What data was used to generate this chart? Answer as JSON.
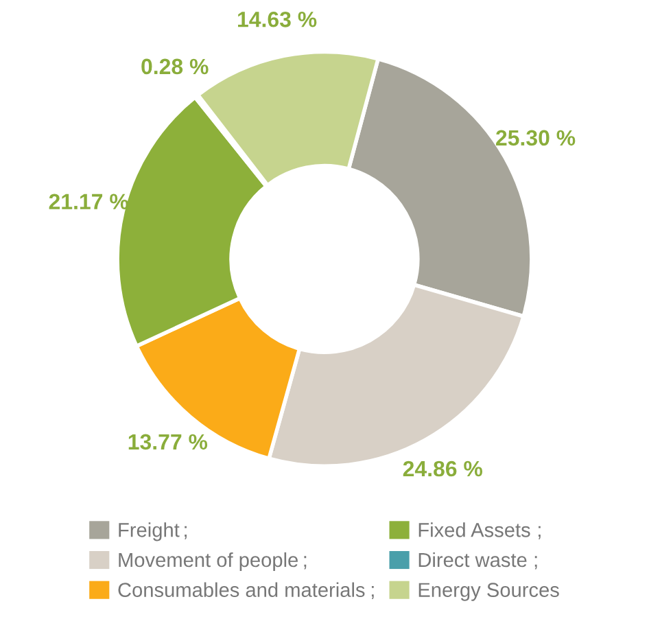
{
  "chart_data": {
    "type": "donut",
    "categories": [
      "Freight",
      "Movement of people",
      "Consumables and materials",
      "Fixed Assets",
      "Direct waste",
      "Energy Sources"
    ],
    "values": [
      25.3,
      24.86,
      13.77,
      21.17,
      0.28,
      14.63
    ],
    "colors": [
      "#a7a59a",
      "#d8d0c6",
      "#fbab18",
      "#8db03a",
      "#4a9faa",
      "#c6d48e"
    ],
    "value_labels": [
      "25.30 %",
      "24.86 %",
      "13.77 %",
      "21.17 %",
      "0.28 %",
      "14.63 %"
    ],
    "annotations": [
      ";",
      ";",
      ";",
      ";",
      ";"
    ],
    "legend": "bottom"
  }
}
